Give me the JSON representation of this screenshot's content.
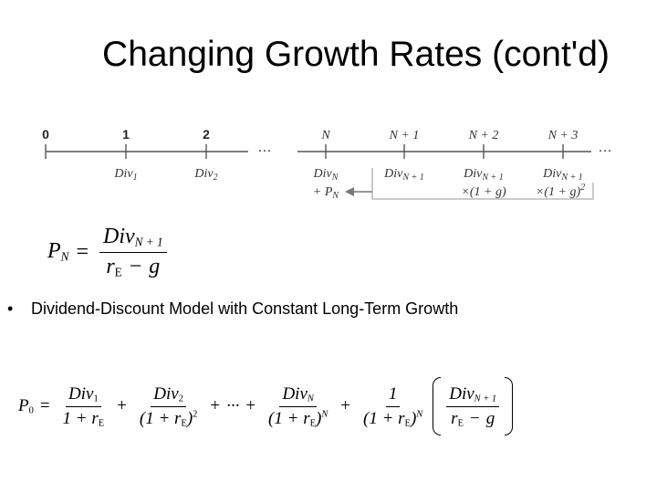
{
  "slide": {
    "title": "Changing Growth Rates (cont'd)"
  },
  "timeline": {
    "periods": [
      "0",
      "1",
      "2",
      "N",
      "N + 1",
      "N + 2",
      "N + 3"
    ],
    "ellipsis": "···",
    "cashflows": {
      "div": "Div",
      "sub_1": "1",
      "sub_2": "2",
      "sub_N": "N",
      "sub_N1": "N + 1",
      "plus_PN": "+ P",
      "growth_1": "×(1 + g)",
      "growth_2": "×(1 + g)",
      "growth_2_exp": "2"
    }
  },
  "formula_pn": {
    "lhs": "P",
    "lhs_sub": "N",
    "eq": "=",
    "num": "Div",
    "num_sub": "N + 1",
    "den_r": "r",
    "den_r_sub": "E",
    "den_minus": "−",
    "den_g": "g"
  },
  "bullet": {
    "marker": "•",
    "text": "Dividend-Discount Model with Constant Long-Term Growth"
  },
  "formula_p0": {
    "lhs": "P",
    "lhs_sub": "0",
    "eq": "=",
    "plus": "+",
    "dots": "···",
    "one": "1",
    "term1_num": "Div",
    "term1_num_sub": "1",
    "term1_den": "1 + r",
    "term1_den_sub": "E",
    "term2_num": "Div",
    "term2_num_sub": "2",
    "term2_den": "(1 + r",
    "term2_den_sub": "E",
    "term2_den_close": ")",
    "term2_den_exp": "2",
    "termN_num": "Div",
    "termN_num_sub": "N",
    "termN_den": "(1 + r",
    "termN_den_sub": "E",
    "termN_den_close": ")",
    "termN_den_exp": "N",
    "last_den": "(1 + r",
    "last_den_sub": "E",
    "last_den_close": ")",
    "last_den_exp": "N",
    "inner_num": "Div",
    "inner_num_sub": "N + 1",
    "inner_den_r": "r",
    "inner_den_r_sub": "E",
    "inner_den_minus": "−",
    "inner_den_g": "g"
  }
}
